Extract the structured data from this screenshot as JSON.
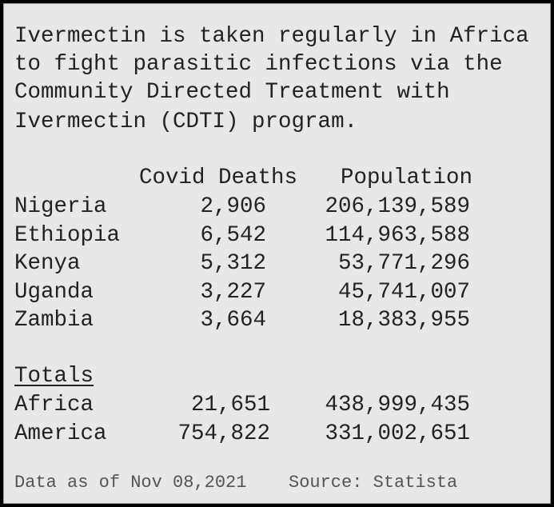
{
  "intro": [
    "Ivermectin is taken regularly in Africa",
    "to fight parasitic infections via the",
    "Community Directed Treatment with",
    "Ivermectin (CDTI) program."
  ],
  "table": {
    "header": [
      "Covid Deaths",
      "Population"
    ],
    "rows": [
      [
        "Nigeria",
        "2,906",
        "206,139,589"
      ],
      [
        "Ethiopia",
        "6,542",
        "114,963,588"
      ],
      [
        "Kenya",
        "5,312",
        "53,771,296"
      ],
      [
        "Uganda",
        "3,227",
        "45,741,007"
      ],
      [
        "Zambia",
        "3,664",
        "18,383,955"
      ]
    ]
  },
  "totals": {
    "title": "Totals",
    "rows": [
      [
        "Africa",
        "21,651",
        "438,999,435"
      ],
      [
        "America",
        "754,822",
        "331,002,651"
      ]
    ]
  },
  "footer": {
    "date": "Data as of Nov 08,2021",
    "source": "Source: Statista"
  }
}
